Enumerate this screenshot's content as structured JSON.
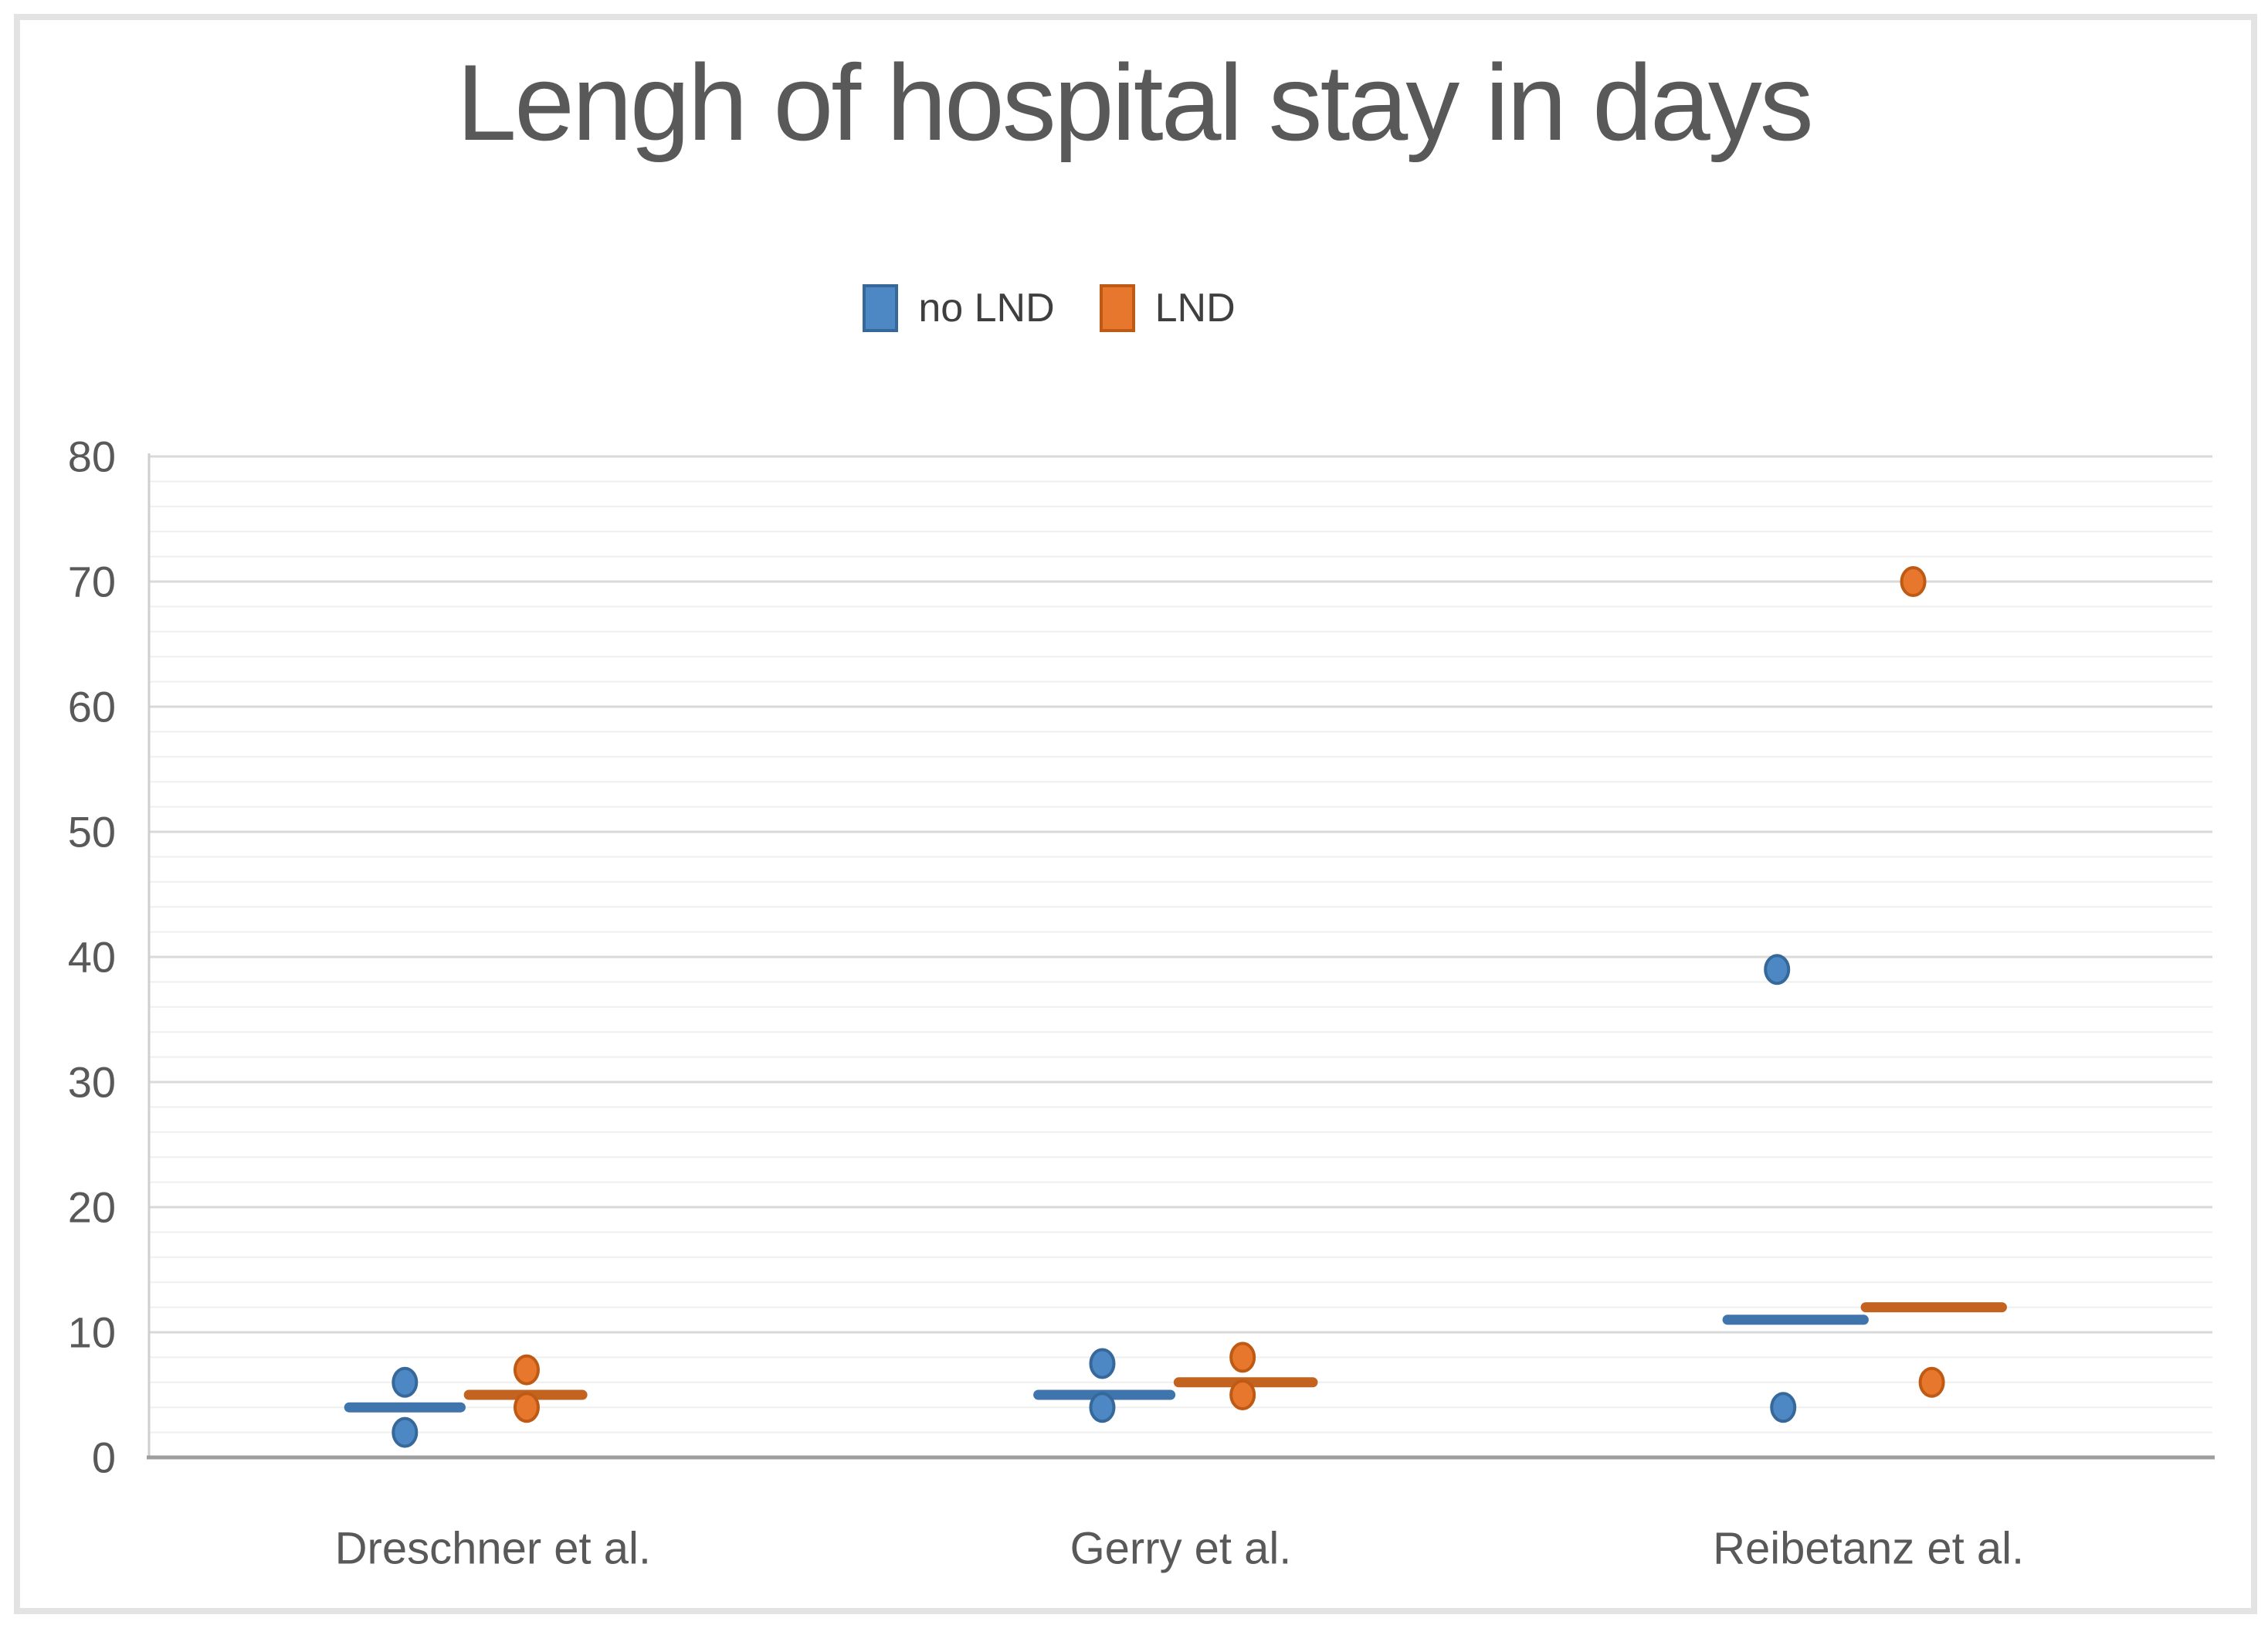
{
  "chart_data": {
    "type": "scatter",
    "title": "Lengh of hospital stay in days",
    "unit": "days",
    "legend": [
      {
        "label": "no LND",
        "color": "#4e88c4",
        "border_color": "#36689a"
      },
      {
        "label": "LND",
        "color": "#e8772e",
        "border_color": "#bf5a15"
      }
    ],
    "y_axis": {
      "min": 0,
      "max": 80,
      "major_step": 10,
      "minor_step": 2,
      "tick_labels": [
        "0",
        "10",
        "20",
        "30",
        "40",
        "50",
        "60",
        "70",
        "80"
      ]
    },
    "categories": [
      "Dreschner et al.",
      "Gerry et al.",
      "Reibetanz et al."
    ],
    "grid": {
      "major": true,
      "minor": true
    },
    "legend_position": "top-center",
    "series": [
      {
        "name": "no LND",
        "dot_fill": "#4e88c4",
        "dot_stroke": "#36689a",
        "line_color": "#3f74ad",
        "groups": [
          {
            "category": "Dreschner et al.",
            "median": 4,
            "median_x_frac": [
              0.097,
              0.151
            ],
            "points": [
              {
                "x_frac": 0.124,
                "y": 6
              },
              {
                "x_frac": 0.124,
                "y": 2
              }
            ]
          },
          {
            "category": "Gerry et al.",
            "median": 5,
            "median_x_frac": [
              0.431,
              0.495
            ],
            "points": [
              {
                "x_frac": 0.462,
                "y": 7.5
              },
              {
                "x_frac": 0.462,
                "y": 4
              }
            ]
          },
          {
            "category": "Reibetanz et al.",
            "median": 11,
            "median_x_frac": [
              0.765,
              0.831
            ],
            "points": [
              {
                "x_frac": 0.789,
                "y": 39
              },
              {
                "x_frac": 0.792,
                "y": 4
              }
            ]
          }
        ]
      },
      {
        "name": "LND",
        "dot_fill": "#e8772e",
        "dot_stroke": "#bf5a15",
        "line_color": "#c2641f",
        "groups": [
          {
            "category": "Dreschner et al.",
            "median": 5,
            "median_x_frac": [
              0.155,
              0.21
            ],
            "points": [
              {
                "x_frac": 0.183,
                "y": 7
              },
              {
                "x_frac": 0.183,
                "y": 4
              }
            ]
          },
          {
            "category": "Gerry et al.",
            "median": 6,
            "median_x_frac": [
              0.499,
              0.564
            ],
            "points": [
              {
                "x_frac": 0.53,
                "y": 8
              },
              {
                "x_frac": 0.53,
                "y": 5
              }
            ]
          },
          {
            "category": "Reibetanz et al.",
            "median": 12,
            "median_x_frac": [
              0.832,
              0.898
            ],
            "points": [
              {
                "x_frac": 0.855,
                "y": 70
              },
              {
                "x_frac": 0.864,
                "y": 6
              }
            ]
          }
        ]
      }
    ],
    "style": {
      "title_color": "#595959",
      "axis_text_color": "#595959",
      "legend_text_color": "#3f3f3f",
      "major_grid_color": "#d9d9d9",
      "minor_grid_color": "#efefef",
      "bottom_axis_color": "#9e9e9e",
      "left_axis_color": "#cfcfcf",
      "frame_border_color": "#e3e3e3"
    }
  }
}
